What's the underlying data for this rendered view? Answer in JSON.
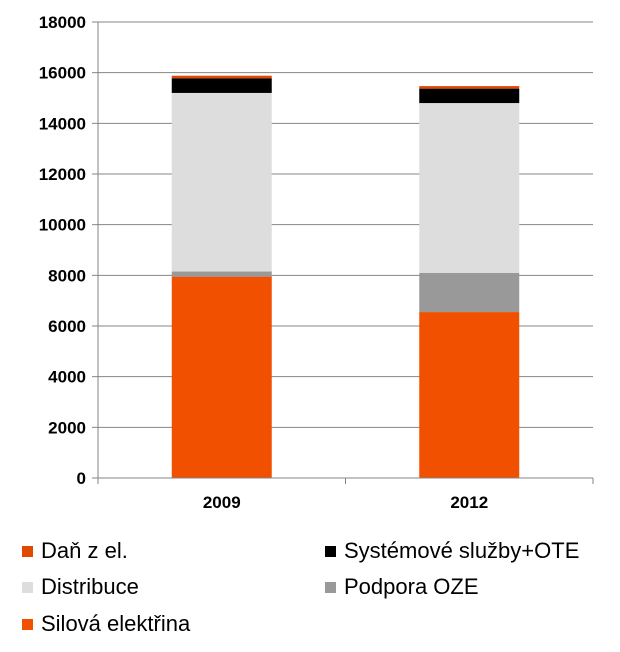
{
  "chart_data": {
    "type": "bar",
    "stacked": true,
    "categories": [
      "2009",
      "2012"
    ],
    "series": [
      {
        "name": "Silová elektřina",
        "color": "#f05000",
        "values": [
          7950,
          6550
        ]
      },
      {
        "name": "Podpora OZE",
        "color": "#999999",
        "values": [
          200,
          1550
        ]
      },
      {
        "name": "Distribuce",
        "color": "#dddddd",
        "values": [
          7050,
          6700
        ]
      },
      {
        "name": "Systémové služby+OTE",
        "color": "#000000",
        "values": [
          580,
          570
        ]
      },
      {
        "name": "Daň z el.",
        "color": "#e04a00",
        "values": [
          100,
          100
        ]
      }
    ],
    "ylim": [
      0,
      18000
    ],
    "yticks": [
      0,
      2000,
      4000,
      6000,
      8000,
      10000,
      12000,
      14000,
      16000,
      18000
    ],
    "grid": true,
    "legend_position": "bottom",
    "title": "",
    "xlabel": "",
    "ylabel": ""
  },
  "legend": [
    {
      "label": "Daň z el.",
      "color": "#e04a00"
    },
    {
      "label": "Systémové služby+OTE",
      "color": "#000000"
    },
    {
      "label": "Distribuce",
      "color": "#dddddd"
    },
    {
      "label": "Podpora OZE",
      "color": "#999999"
    },
    {
      "label": "Silová elektřina",
      "color": "#f05000"
    }
  ]
}
